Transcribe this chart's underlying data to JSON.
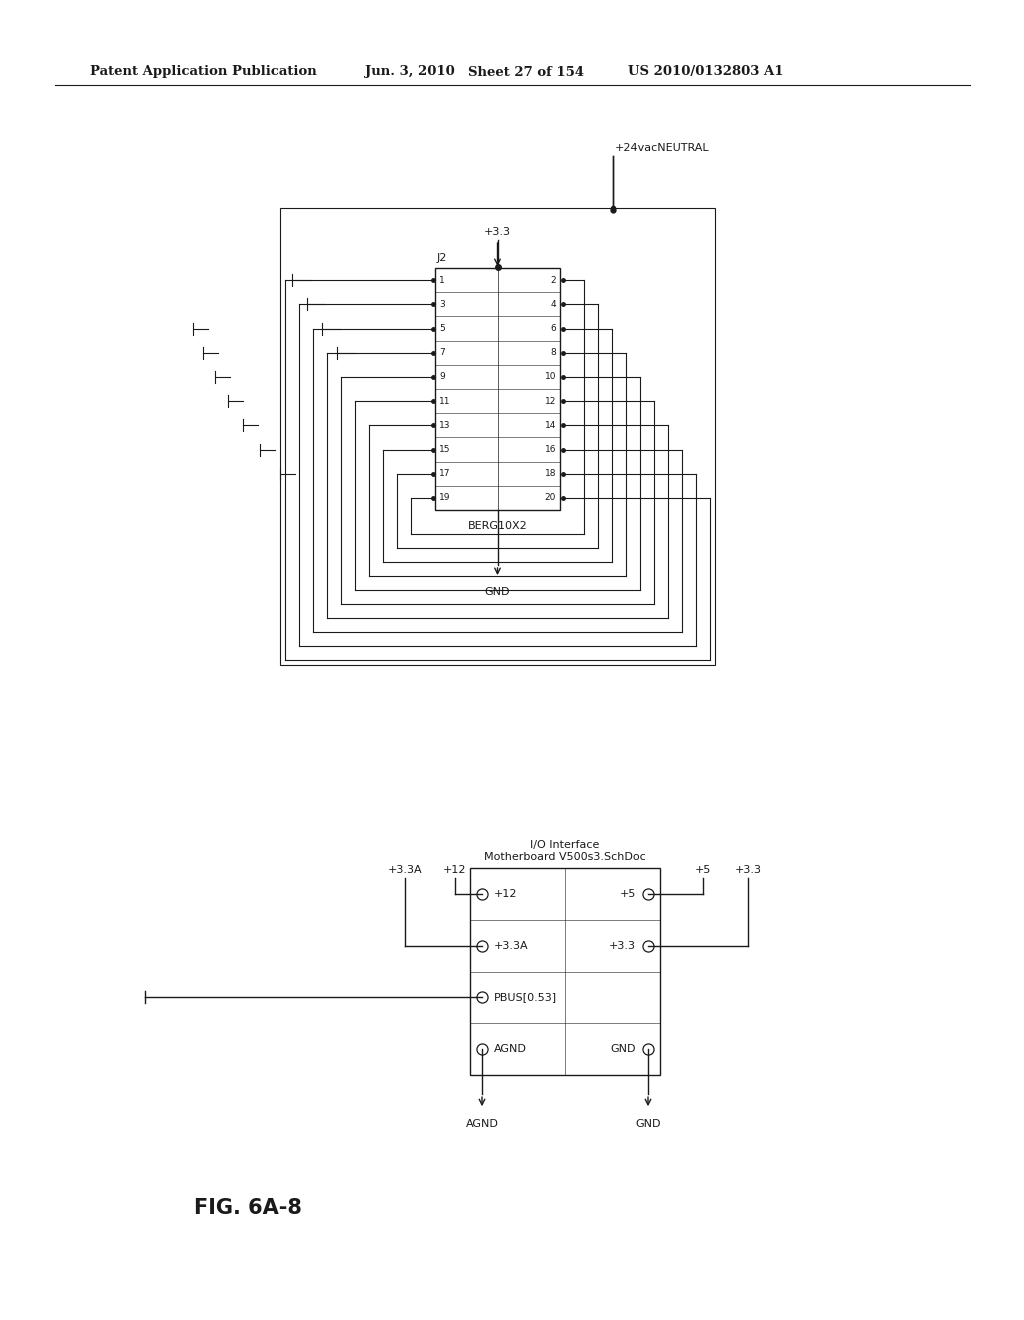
{
  "bg_color": "#ffffff",
  "header_text": "Patent Application Publication",
  "header_date": "Jun. 3, 2010",
  "header_sheet": "Sheet 27 of 154",
  "header_patent": "US 2010/0132803 A1",
  "fig_label": "FIG. 6A-8",
  "top_diagram": {
    "label_24vac": "+24vacNEUTRAL",
    "label_33": "+3.3",
    "component_label": "J2",
    "component_name": "BERG10X2",
    "gnd_label": "GND",
    "pins_left": [
      "1",
      "3",
      "5",
      "7",
      "9",
      "11",
      "13",
      "15",
      "17",
      "19"
    ],
    "pins_right": [
      "2",
      "4",
      "6",
      "8",
      "10",
      "12",
      "14",
      "16",
      "18",
      "20"
    ]
  },
  "bottom_diagram": {
    "title_line1": "I/O Interface",
    "title_line2": "Motherboard V500s3.SchDoc",
    "labels_top_left": [
      "+3.3A",
      "+12"
    ],
    "labels_top_right": [
      "+5",
      "+3.3"
    ],
    "pin_labels_left": [
      "+12",
      "+3.3A",
      "PBUS[0.53]",
      "AGND"
    ],
    "pin_labels_right": [
      "+5",
      "+3.3",
      "",
      "GND"
    ],
    "agnd_label": "AGND",
    "gnd_label": "GND"
  }
}
